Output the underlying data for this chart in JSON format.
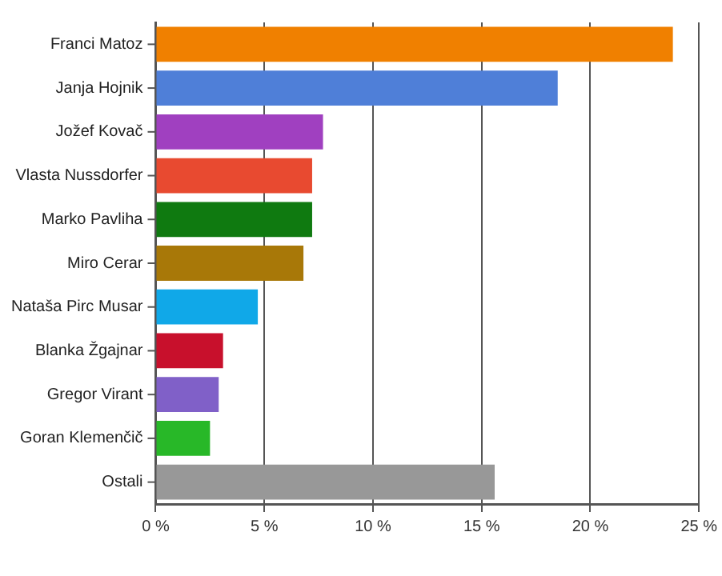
{
  "chart_data": {
    "type": "bar",
    "orientation": "horizontal",
    "categories": [
      "Franci Matoz",
      "Janja Hojnik",
      "Jožef Kovač",
      "Vlasta Nussdorfer",
      "Marko Pavliha",
      "Miro Cerar",
      "Nataša Pirc Musar",
      "Blanka Žgajnar",
      "Gregor Virant",
      "Goran Klemenčič",
      "Ostali"
    ],
    "values": [
      23.8,
      18.5,
      7.7,
      7.2,
      7.2,
      6.8,
      4.7,
      3.1,
      2.9,
      2.5,
      15.6
    ],
    "colors": [
      "#f08000",
      "#4f7fd8",
      "#a040c0",
      "#e84a30",
      "#0f7a10",
      "#a87808",
      "#10a8e8",
      "#c8102c",
      "#8060c8",
      "#28b828",
      "#989898"
    ],
    "xlim": [
      0,
      25
    ],
    "xticks": [
      {
        "value": 0,
        "label": "0 %"
      },
      {
        "value": 5,
        "label": "5 %"
      },
      {
        "value": 10,
        "label": "10 %"
      },
      {
        "value": 15,
        "label": "15 %"
      },
      {
        "value": 20,
        "label": "20 %"
      },
      {
        "value": 25,
        "label": "25 %"
      }
    ],
    "grid": "x",
    "legend": false
  }
}
